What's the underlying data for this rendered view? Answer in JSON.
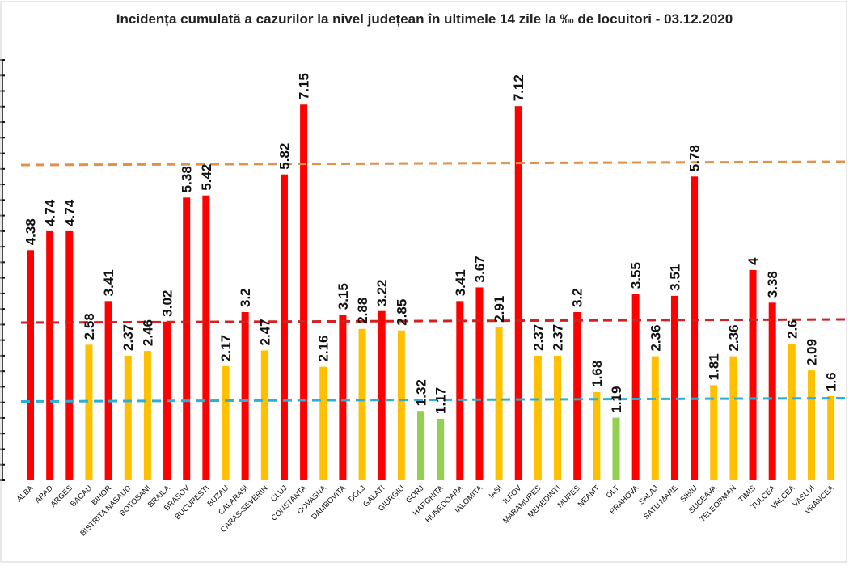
{
  "chart_data": {
    "type": "bar",
    "title": "Incidența cumulată a cazurilor la nivel județean în ultimele 14 zile la ‰ de locuitori - 03.12.2020",
    "categories": [
      "ALBA",
      "ARAD",
      "ARGES",
      "BACAU",
      "BIHOR",
      "BISTRITA NASAUD",
      "BOTOSANI",
      "BRAILA",
      "BRASOV",
      "BUCURESTI",
      "BUZAU",
      "CALARASI",
      "CARAS-SEVERIN",
      "CLUJ",
      "CONSTANTA",
      "COVASNA",
      "DAMBOVITA",
      "DOLJ",
      "GALATI",
      "GIURGIU",
      "GORJ",
      "HARGHITA",
      "HUNEDOARA",
      "IALOMITA",
      "IASI",
      "ILFOV",
      "MARAMURES",
      "MEHEDINTI",
      "MURES",
      "NEAMT",
      "OLT",
      "PRAHOVA",
      "SALAJ",
      "SATU MARE",
      "SIBIU",
      "SUCEAVA",
      "TELEORMAN",
      "TIMIS",
      "TULCEA",
      "VALCEA",
      "VASLUI",
      "VRANCEA"
    ],
    "values": [
      4.38,
      4.74,
      4.74,
      2.58,
      3.41,
      2.37,
      2.46,
      3.02,
      5.38,
      5.42,
      2.17,
      3.2,
      2.47,
      5.82,
      7.15,
      2.16,
      3.15,
      2.88,
      3.22,
      2.85,
      1.32,
      1.17,
      3.41,
      3.67,
      2.91,
      7.12,
      2.37,
      2.37,
      3.2,
      1.68,
      1.19,
      3.55,
      2.36,
      3.51,
      5.78,
      1.81,
      2.36,
      4,
      3.38,
      2.6,
      2.09,
      1.6
    ],
    "value_labels": [
      "4.38",
      "4.74",
      "4.74",
      "2.58",
      "3.41",
      "2.37",
      "2.46",
      "3.02",
      "5.38",
      "5.42",
      "2.17",
      "3.2",
      "2.47",
      "5.82",
      "7.15",
      "2.16",
      "3.15",
      "2.88",
      "3.22",
      "2.85",
      "1.32",
      "1.17",
      "3.41",
      "3.67",
      "2.91",
      "7.12",
      "2.37",
      "2.37",
      "3.2",
      "1.68",
      "1.19",
      "3.55",
      "2.36",
      "3.51",
      "5.78",
      "1.81",
      "2.36",
      "4",
      "3.38",
      "2.6",
      "2.09",
      "1.6"
    ],
    "bar_colors": [
      "#ff0000",
      "#ff0000",
      "#ff0000",
      "#ffc000",
      "#ff0000",
      "#ffc000",
      "#ffc000",
      "#ff0000",
      "#ff0000",
      "#ff0000",
      "#ffc000",
      "#ff0000",
      "#ffc000",
      "#ff0000",
      "#ff0000",
      "#ffc000",
      "#ff0000",
      "#ffc000",
      "#ff0000",
      "#ffc000",
      "#92d050",
      "#92d050",
      "#ff0000",
      "#ff0000",
      "#ffc000",
      "#ff0000",
      "#ffc000",
      "#ffc000",
      "#ff0000",
      "#ffc000",
      "#92d050",
      "#ff0000",
      "#ffc000",
      "#ff0000",
      "#ff0000",
      "#ffc000",
      "#ffc000",
      "#ff0000",
      "#ff0000",
      "#ffc000",
      "#ffc000",
      "#ffc000"
    ],
    "reference_lines": [
      {
        "value": 1.5,
        "color": "#2ab0d8"
      },
      {
        "value": 3.0,
        "color": "#d42020"
      },
      {
        "value": 6.0,
        "color": "#e0914a"
      }
    ],
    "ylim": [
      0,
      8
    ],
    "xlabel": "",
    "ylabel": "",
    "grid": false
  }
}
